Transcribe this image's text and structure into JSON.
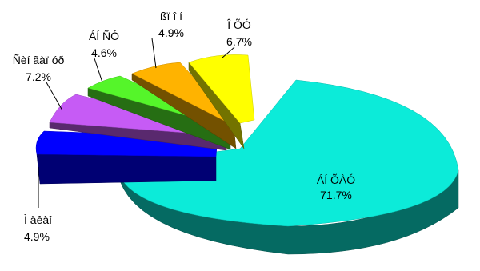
{
  "chart_data": {
    "type": "pie",
    "style": "3d-exploded",
    "slices": [
      {
        "label": "ÁÍ ÕÀÓ",
        "value": 71.7,
        "value_label": "71.7%",
        "color": "#0CEBD9"
      },
      {
        "label": "Ì àêàî",
        "value": 4.9,
        "value_label": "4.9%",
        "color": "#0000FF"
      },
      {
        "label": "Ñèí ãàï óð",
        "value": 7.2,
        "value_label": "7.2%",
        "color": "#C65BF5"
      },
      {
        "label": "ÁÍ ÑÓ",
        "value": 4.6,
        "value_label": "4.6%",
        "color": "#55F52A"
      },
      {
        "label": "ßï î í",
        "value": 4.9,
        "value_label": "4.9%",
        "color": "#FFB300"
      },
      {
        "label": "Î ÕÓ",
        "value": 6.7,
        "value_label": "6.7%",
        "color": "#FFFF00"
      }
    ]
  }
}
